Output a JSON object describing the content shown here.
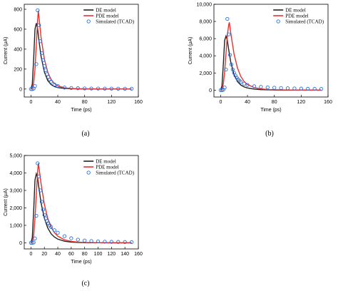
{
  "figure": {
    "legend_entries": [
      "DE model",
      "PDE model",
      "Simulated (TCAD)"
    ],
    "colors": {
      "de": "#222222",
      "pde": "#e8312f",
      "tcad": "#2f6fd6"
    }
  },
  "chart_data": [
    {
      "type": "line",
      "panel_label": "(a)",
      "xlabel": "Time (ps)",
      "ylabel": "Current (μA)",
      "xlim": [
        -10,
        160
      ],
      "ylim": [
        -80,
        850
      ],
      "x_ticks": [
        0,
        40,
        80,
        120,
        160
      ],
      "y_ticks": [
        0,
        200,
        400,
        600,
        800
      ],
      "y_tick_labels": [
        "0",
        "200",
        "400",
        "600",
        "800"
      ],
      "legend_position": "top-right",
      "series": [
        {
          "name": "DE model",
          "style": "line",
          "color": "#222222",
          "x": [
            0,
            2,
            4,
            6,
            8,
            10,
            12,
            15,
            20,
            25,
            30,
            35,
            40,
            50,
            60,
            70,
            80,
            90,
            100,
            120,
            140,
            150
          ],
          "y": [
            0,
            50,
            300,
            600,
            660,
            600,
            480,
            330,
            170,
            85,
            45,
            25,
            14,
            6,
            3,
            2,
            1,
            1,
            0,
            0,
            0,
            0
          ]
        },
        {
          "name": "PDE model",
          "style": "line",
          "color": "#e8312f",
          "x": [
            0,
            2,
            4,
            6,
            8,
            10,
            11,
            12,
            15,
            20,
            25,
            30,
            35,
            40,
            50,
            60,
            70,
            80,
            100,
            120,
            140,
            150
          ],
          "y": [
            0,
            10,
            60,
            200,
            450,
            700,
            785,
            720,
            520,
            300,
            170,
            95,
            55,
            32,
            12,
            5,
            3,
            2,
            1,
            0,
            0,
            0
          ]
        },
        {
          "name": "Simulated (TCAD)",
          "style": "markers",
          "color": "#2f6fd6",
          "x": [
            0,
            2,
            4,
            6,
            8,
            10,
            12,
            14,
            16,
            18,
            20,
            22,
            24,
            26,
            28,
            30,
            35,
            40,
            50,
            60,
            70,
            80,
            90,
            100,
            110,
            120,
            130,
            140,
            150
          ],
          "y": [
            0,
            0,
            5,
            30,
            250,
            790,
            640,
            480,
            360,
            290,
            230,
            190,
            150,
            120,
            95,
            75,
            45,
            30,
            15,
            10,
            8,
            6,
            5,
            5,
            4,
            4,
            3,
            3,
            3
          ]
        }
      ]
    },
    {
      "type": "line",
      "panel_label": "(b)",
      "xlabel": "Time (ps)",
      "ylabel": "Current (μA)",
      "xlim": [
        -10,
        160
      ],
      "ylim": [
        -800,
        10000
      ],
      "x_ticks": [
        0,
        40,
        80,
        120,
        160
      ],
      "y_ticks": [
        0,
        2000,
        4000,
        6000,
        8000,
        10000
      ],
      "y_tick_labels": [
        "0",
        "2,000",
        "4,000",
        "6,000",
        "8,000",
        "10,000"
      ],
      "legend_position": "top-right",
      "series": [
        {
          "name": "DE model",
          "style": "line",
          "color": "#222222",
          "x": [
            0,
            2,
            4,
            6,
            8,
            10,
            12,
            15,
            20,
            25,
            30,
            35,
            40,
            50,
            60,
            70,
            80,
            100,
            120,
            140,
            150
          ],
          "y": [
            0,
            500,
            3000,
            5800,
            6300,
            5800,
            4700,
            3300,
            1800,
            1000,
            600,
            380,
            250,
            120,
            60,
            35,
            20,
            8,
            3,
            1,
            0
          ]
        },
        {
          "name": "PDE model",
          "style": "line",
          "color": "#e8312f",
          "x": [
            0,
            2,
            4,
            6,
            8,
            10,
            12,
            13,
            15,
            20,
            25,
            30,
            35,
            40,
            50,
            60,
            70,
            80,
            100,
            120,
            140,
            150
          ],
          "y": [
            0,
            100,
            700,
            2200,
            4300,
            6400,
            7600,
            7900,
            6700,
            4200,
            2600,
            1600,
            1000,
            650,
            300,
            150,
            80,
            45,
            15,
            5,
            2,
            1
          ]
        },
        {
          "name": "Simulated (TCAD)",
          "style": "markers",
          "color": "#2f6fd6",
          "x": [
            0,
            2,
            4,
            6,
            8,
            10,
            12,
            14,
            16,
            18,
            20,
            22,
            24,
            26,
            28,
            30,
            35,
            40,
            50,
            60,
            70,
            80,
            90,
            100,
            110,
            120,
            130,
            140,
            150
          ],
          "y": [
            0,
            0,
            50,
            300,
            2400,
            8300,
            6500,
            4100,
            3000,
            2400,
            2000,
            1700,
            1450,
            1250,
            1100,
            950,
            750,
            600,
            450,
            380,
            320,
            280,
            250,
            220,
            200,
            180,
            160,
            150,
            140
          ]
        }
      ]
    },
    {
      "type": "line",
      "panel_label": "(c)",
      "xlabel": "Time (ps)",
      "ylabel": "Current (μA)",
      "xlim": [
        -10,
        160
      ],
      "ylim": [
        -350,
        5000
      ],
      "x_ticks": [
        0,
        20,
        40,
        60,
        80,
        100,
        120,
        140,
        160
      ],
      "y_ticks": [
        0,
        1000,
        2000,
        3000,
        4000,
        5000
      ],
      "y_tick_labels": [
        "0",
        "1,000",
        "2,000",
        "3,000",
        "4,000",
        "5,000"
      ],
      "legend_position": "top-right",
      "series": [
        {
          "name": "DE model",
          "style": "line",
          "color": "#222222",
          "x": [
            0,
            2,
            4,
            6,
            8,
            10,
            12,
            15,
            20,
            25,
            30,
            35,
            40,
            50,
            60,
            70,
            80,
            100,
            120,
            140,
            150
          ],
          "y": [
            0,
            300,
            1800,
            3600,
            3950,
            3700,
            3100,
            2300,
            1400,
            850,
            520,
            330,
            210,
            90,
            40,
            20,
            10,
            3,
            1,
            0,
            0
          ]
        },
        {
          "name": "PDE model",
          "style": "line",
          "color": "#e8312f",
          "x": [
            0,
            2,
            4,
            6,
            8,
            10,
            11,
            12,
            15,
            20,
            25,
            30,
            35,
            40,
            50,
            60,
            70,
            80,
            100,
            120,
            140,
            150
          ],
          "y": [
            0,
            60,
            400,
            1400,
            2800,
            4100,
            4550,
            4300,
            3400,
            2200,
            1400,
            900,
            580,
            380,
            170,
            80,
            40,
            20,
            6,
            2,
            1,
            0
          ]
        },
        {
          "name": "Simulated (TCAD)",
          "style": "markers",
          "color": "#2f6fd6",
          "x": [
            0,
            2,
            4,
            6,
            8,
            10,
            12,
            14,
            16,
            18,
            20,
            22,
            24,
            26,
            28,
            30,
            35,
            40,
            50,
            60,
            70,
            80,
            90,
            100,
            110,
            120,
            130,
            140,
            150
          ],
          "y": [
            0,
            0,
            20,
            250,
            1550,
            4550,
            3800,
            3000,
            2350,
            1900,
            1600,
            1400,
            1250,
            1120,
            1000,
            900,
            720,
            580,
            380,
            260,
            180,
            130,
            100,
            80,
            65,
            55,
            50,
            45,
            40
          ]
        }
      ]
    }
  ]
}
